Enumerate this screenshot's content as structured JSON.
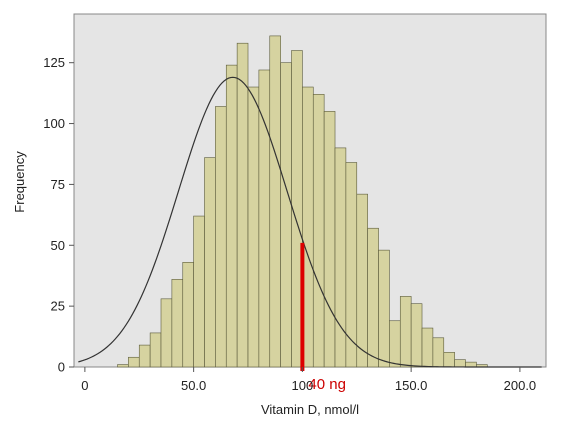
{
  "chart_data": {
    "type": "bar",
    "title": "",
    "xlabel": "Vitamin D, nmol/l",
    "ylabel": "Frequency",
    "xlim": [
      -5,
      212
    ],
    "ylim": [
      0,
      145
    ],
    "grid": false,
    "legend": "none",
    "colors": {
      "plot_background": "#e5e5e5",
      "bar_fill": "#d6d3a0",
      "bar_stroke": "#5a5a3a",
      "curve": "#333333",
      "marker": "#dd0000"
    },
    "x_ticks": [
      {
        "value": 0,
        "label": "0"
      },
      {
        "value": 50,
        "label": "50.0"
      },
      {
        "value": 100,
        "label": "100"
      },
      {
        "value": 150,
        "label": "150.0"
      },
      {
        "value": 200,
        "label": "200.0"
      }
    ],
    "y_ticks": [
      {
        "value": 0,
        "label": "0"
      },
      {
        "value": 25,
        "label": "25"
      },
      {
        "value": 50,
        "label": "50"
      },
      {
        "value": 75,
        "label": "75"
      },
      {
        "value": 100,
        "label": "100"
      },
      {
        "value": 125,
        "label": "125"
      }
    ],
    "bin_width": 5,
    "bins": [
      {
        "x": 15,
        "value": 1
      },
      {
        "x": 20,
        "value": 4
      },
      {
        "x": 25,
        "value": 9
      },
      {
        "x": 30,
        "value": 14
      },
      {
        "x": 35,
        "value": 28
      },
      {
        "x": 40,
        "value": 36
      },
      {
        "x": 45,
        "value": 43
      },
      {
        "x": 50,
        "value": 62
      },
      {
        "x": 55,
        "value": 86
      },
      {
        "x": 60,
        "value": 107
      },
      {
        "x": 65,
        "value": 124
      },
      {
        "x": 70,
        "value": 133
      },
      {
        "x": 75,
        "value": 115
      },
      {
        "x": 80,
        "value": 122
      },
      {
        "x": 85,
        "value": 136
      },
      {
        "x": 90,
        "value": 125
      },
      {
        "x": 95,
        "value": 130
      },
      {
        "x": 100,
        "value": 115
      },
      {
        "x": 105,
        "value": 112
      },
      {
        "x": 110,
        "value": 105
      },
      {
        "x": 115,
        "value": 90
      },
      {
        "x": 120,
        "value": 84
      },
      {
        "x": 125,
        "value": 71
      },
      {
        "x": 130,
        "value": 57
      },
      {
        "x": 135,
        "value": 48
      },
      {
        "x": 140,
        "value": 19
      },
      {
        "x": 145,
        "value": 29
      },
      {
        "x": 150,
        "value": 26
      },
      {
        "x": 155,
        "value": 16
      },
      {
        "x": 160,
        "value": 12
      },
      {
        "x": 165,
        "value": 6
      },
      {
        "x": 170,
        "value": 3
      },
      {
        "x": 175,
        "value": 2
      },
      {
        "x": 180,
        "value": 1
      }
    ],
    "normal_curve": {
      "mean": 68,
      "sd": 25,
      "peak": 119
    },
    "annotation": {
      "text": "40 ng",
      "x": 100,
      "y_top": 51
    }
  }
}
